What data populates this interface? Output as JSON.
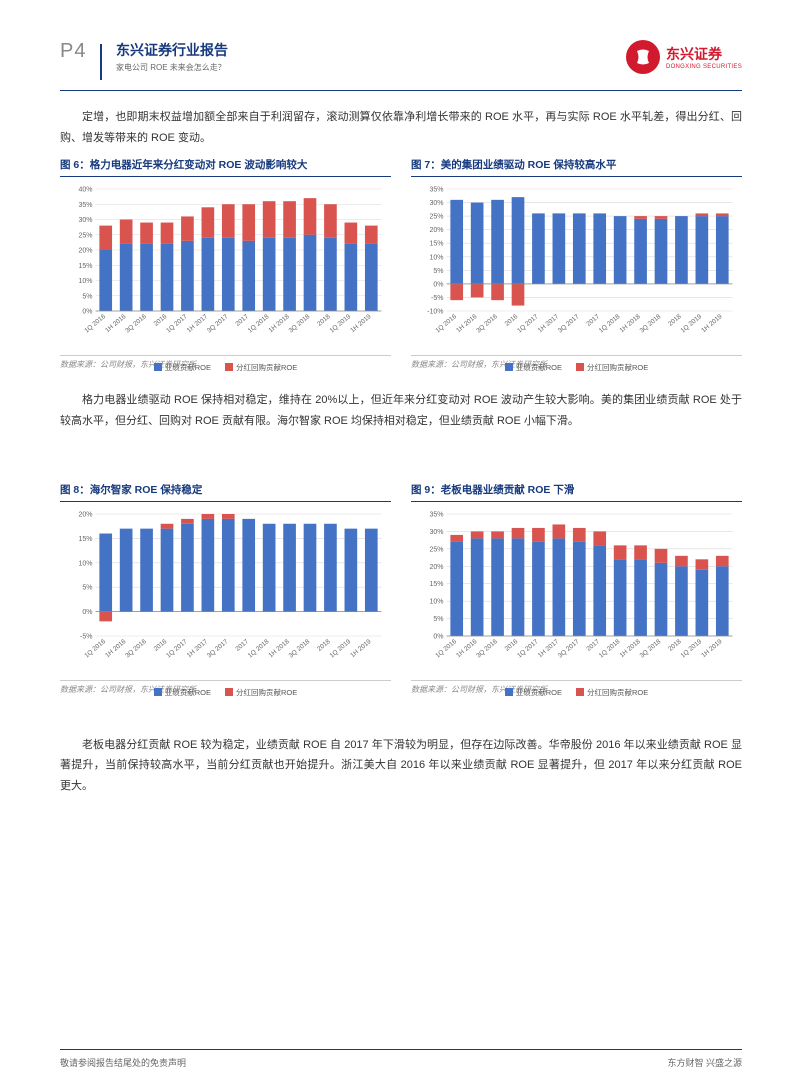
{
  "header": {
    "page_num": "P4",
    "title_main": "东兴证券行业报告",
    "title_sub": "家电公司 ROE 未来会怎么走？",
    "company_cn": "东兴证券",
    "company_en": "DONGXING SECURITIES"
  },
  "colors": {
    "brand_blue": "#173a7e",
    "brand_red": "#d11a2d",
    "bar_blue": "#4472c4",
    "bar_red": "#d9534f",
    "grid": "#d9d9d9",
    "axis": "#888888",
    "text": "#333333"
  },
  "para1": "定增，也即期末权益增加额全部来自于利润留存，滚动测算仅依靠净利增长带来的 ROE 水平，再与实际 ROE 水平轧差，得出分红、回购、增发等带来的 ROE 变动。",
  "para2": "格力电器业绩驱动 ROE 保持相对稳定，维持在 20%以上，但近年来分红变动对 ROE 波动产生较大影响。美的集团业绩贡献 ROE 处于较高水平，但分红、回购对 ROE 贡献有限。海尔智家 ROE 均保持相对稳定，但业绩贡献 ROE 小幅下滑。",
  "para3": "老板电器分红贡献 ROE 较为稳定，业绩贡献 ROE 自 2017 年下滑较为明显，但存在边际改善。华帝股份 2016 年以来业绩贡献 ROE 显著提升，当前保持较高水平，当前分红贡献也开始提升。浙江美大自 2016 年以来业绩贡献 ROE 显著提升，但 2017 年以来分红贡献 ROE 更大。",
  "source_text": "数据来源：公司财报，东兴证券研究所",
  "legend": {
    "s1": "业绩贡献ROE",
    "s2": "分红回购贡献ROE"
  },
  "categories": [
    "1Q 2016",
    "1H 2016",
    "3Q 2016",
    "2016",
    "1Q 2017",
    "1H 2017",
    "3Q 2017",
    "2017",
    "1Q 2018",
    "1H 2018",
    "3Q 2018",
    "2018",
    "1Q 2019",
    "1H 2019"
  ],
  "chart6": {
    "title": "图 6：格力电器近年来分红变动对 ROE 波动影响较大",
    "ymin": 0,
    "ymax": 40,
    "ystep": 5,
    "yfmt": "pct",
    "blue": [
      20,
      22,
      22,
      22,
      23,
      24,
      24,
      23,
      24,
      24,
      25,
      24,
      22,
      22
    ],
    "red": [
      8,
      8,
      7,
      7,
      8,
      10,
      11,
      12,
      12,
      12,
      12,
      11,
      7,
      6
    ]
  },
  "chart7": {
    "title": "图 7：美的集团业绩驱动 ROE 保持较高水平",
    "ymin": -10,
    "ymax": 35,
    "ystep": 5,
    "yfmt": "pct",
    "blue": [
      31,
      30,
      31,
      32,
      26,
      26,
      26,
      26,
      25,
      24,
      24,
      25,
      25,
      25
    ],
    "red": [
      -6,
      -5,
      -6,
      -8,
      0,
      0,
      0,
      0,
      0,
      1,
      1,
      0,
      1,
      1
    ]
  },
  "chart8": {
    "title": "图 8：海尔智家 ROE 保持稳定",
    "ymin": -5,
    "ymax": 20,
    "ystep": 5,
    "yfmt": "pct",
    "blue": [
      16,
      17,
      17,
      17,
      18,
      19,
      19,
      19,
      18,
      18,
      18,
      18,
      17,
      17
    ],
    "red": [
      -2,
      0,
      0,
      1,
      1,
      1,
      1,
      0,
      0,
      0,
      0,
      0,
      0,
      0
    ]
  },
  "chart9": {
    "title": "图 9：老板电器业绩贡献 ROE 下滑",
    "ymin": 0,
    "ymax": 35,
    "ystep": 5,
    "yfmt": "pct",
    "blue": [
      27,
      28,
      28,
      28,
      27,
      28,
      27,
      26,
      22,
      22,
      21,
      20,
      19,
      20
    ],
    "red": [
      2,
      2,
      2,
      3,
      4,
      4,
      4,
      4,
      4,
      4,
      4,
      3,
      3,
      3
    ]
  },
  "footer": {
    "left": "敬请参阅报告结尾处的免责声明",
    "right": "东方财智 兴盛之源"
  }
}
